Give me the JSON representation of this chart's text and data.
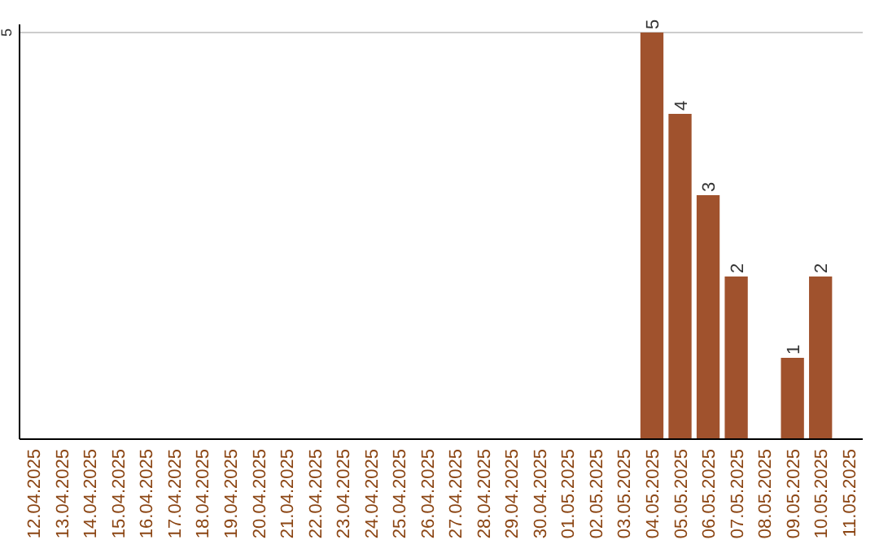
{
  "chart_data": {
    "type": "bar",
    "categories": [
      "12.04.2025",
      "13.04.2025",
      "14.04.2025",
      "15.04.2025",
      "16.04.2025",
      "17.04.2025",
      "18.04.2025",
      "19.04.2025",
      "20.04.2025",
      "21.04.2025",
      "22.04.2025",
      "23.04.2025",
      "24.04.2025",
      "25.04.2025",
      "26.04.2025",
      "27.04.2025",
      "28.04.2025",
      "29.04.2025",
      "30.04.2025",
      "01.05.2025",
      "02.05.2025",
      "03.05.2025",
      "04.05.2025",
      "05.05.2025",
      "06.05.2025",
      "07.05.2025",
      "08.05.2025",
      "09.05.2025",
      "10.05.2025",
      "11.05.2025"
    ],
    "values": [
      null,
      null,
      null,
      null,
      null,
      null,
      null,
      null,
      null,
      null,
      null,
      null,
      null,
      null,
      null,
      null,
      null,
      null,
      null,
      null,
      null,
      null,
      5,
      4,
      3,
      2,
      null,
      1,
      2,
      null
    ],
    "color": "#a0522d",
    "ylim": [
      0,
      5
    ],
    "yticks": [
      5
    ],
    "ref_lines": [
      {
        "axis": "y",
        "value": 5,
        "color": "#cccccc"
      }
    ],
    "data_labels": true
  }
}
